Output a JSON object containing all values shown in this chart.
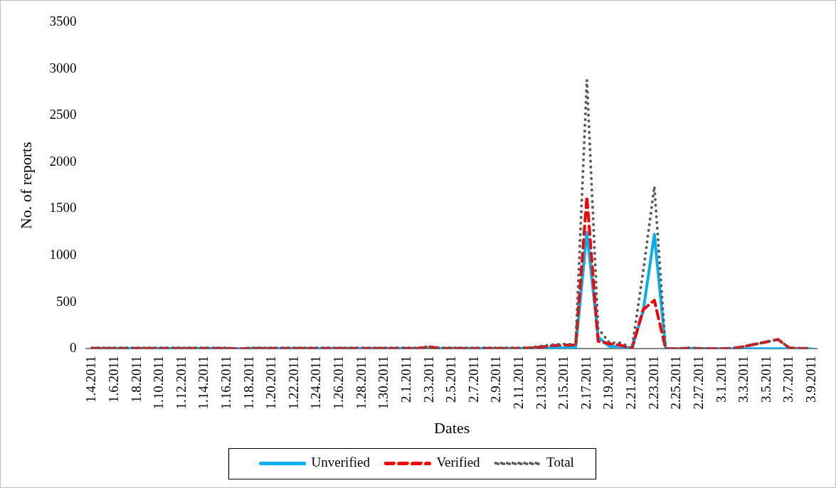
{
  "chart_data": {
    "type": "line",
    "xlabel": "Dates",
    "ylabel": "No. of reports",
    "categories": [
      "1.4.2011",
      null,
      "1.6.2011",
      null,
      "1.8.2011",
      null,
      "1.10.2011",
      null,
      "1.12.2011",
      null,
      "1.14.2011",
      null,
      "1.16.2011",
      null,
      "1.18.2011",
      null,
      "1.20.2011",
      null,
      "1.22.2011",
      null,
      "1.24.2011",
      null,
      "1.26.2011",
      null,
      "1.28.2011",
      null,
      "1.30.2011",
      null,
      "2.1.2011",
      null,
      "2.3.2011",
      null,
      "2.5.2011",
      null,
      "2.7.2011",
      null,
      "2.9.2011",
      null,
      "2.11.2011",
      null,
      "2.13.2011",
      null,
      "2.15.2011",
      null,
      "2.17.2011",
      null,
      "2.19.2011",
      null,
      "2.21.2011",
      null,
      "2.23.2011",
      null,
      "2.25.2011",
      null,
      "2.27.2011",
      null,
      "3.1.2011",
      null,
      "3.3.2011",
      null,
      "3.5.2011",
      null,
      "3.7.2011",
      null,
      "3.9.2011"
    ],
    "series": [
      {
        "name": "Unverified",
        "color": "#00b0f0",
        "line_style": "solid",
        "values": [
          5,
          5,
          5,
          5,
          5,
          5,
          5,
          5,
          5,
          5,
          5,
          5,
          5,
          0,
          5,
          5,
          5,
          5,
          5,
          5,
          5,
          5,
          5,
          5,
          5,
          5,
          5,
          5,
          5,
          5,
          5,
          5,
          5,
          5,
          5,
          5,
          5,
          5,
          5,
          5,
          10,
          10,
          10,
          10,
          1250,
          125,
          25,
          25,
          5,
          400,
          1225,
          0,
          0,
          5,
          5,
          0,
          0,
          0,
          0,
          0,
          0,
          0,
          0,
          0,
          0
        ]
      },
      {
        "name": "Verified",
        "color": "#ff0000",
        "line_style": "dashed",
        "values": [
          5,
          5,
          5,
          5,
          5,
          5,
          5,
          5,
          5,
          5,
          5,
          5,
          5,
          0,
          5,
          5,
          5,
          5,
          5,
          5,
          5,
          5,
          5,
          5,
          5,
          5,
          5,
          5,
          5,
          5,
          20,
          5,
          5,
          5,
          5,
          5,
          5,
          5,
          5,
          10,
          20,
          35,
          40,
          40,
          1630,
          80,
          55,
          40,
          0,
          420,
          520,
          0,
          0,
          5,
          0,
          0,
          0,
          5,
          25,
          50,
          75,
          100,
          10,
          5,
          5
        ]
      },
      {
        "name": "Total",
        "color": "#595959",
        "line_style": "dotted",
        "values": [
          10,
          10,
          10,
          10,
          10,
          10,
          10,
          10,
          10,
          10,
          10,
          10,
          10,
          0,
          10,
          10,
          10,
          10,
          10,
          10,
          10,
          10,
          10,
          10,
          10,
          10,
          10,
          10,
          10,
          10,
          25,
          10,
          10,
          10,
          10,
          10,
          10,
          10,
          10,
          15,
          30,
          45,
          50,
          50,
          2880,
          220,
          65,
          65,
          5,
          820,
          1740,
          0,
          0,
          10,
          5,
          0,
          0,
          5,
          25,
          50,
          75,
          100,
          10,
          5,
          5
        ]
      }
    ],
    "ylim": [
      0,
      3500
    ],
    "yticks": [
      0,
      500,
      1000,
      1500,
      2000,
      2500,
      3000,
      3500
    ],
    "grid": false,
    "legend": "bottom",
    "marker": "none"
  }
}
